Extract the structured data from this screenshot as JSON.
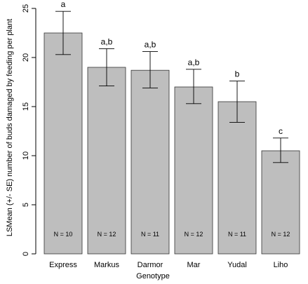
{
  "chart_data": {
    "type": "bar",
    "title": "",
    "xlabel": "Genotype",
    "ylabel": "LSMean (+/- SE) number of buds damaged by feeding per plant",
    "ylim": [
      0,
      25
    ],
    "yticks": [
      "0",
      "5",
      "10",
      "15",
      "20",
      "25"
    ],
    "categories": [
      "Express",
      "Markus",
      "Darmor",
      "Mar",
      "Yudal",
      "Liho"
    ],
    "values": [
      22.5,
      19.0,
      18.7,
      17.0,
      15.5,
      10.5
    ],
    "se_upper": [
      24.7,
      20.9,
      20.6,
      18.8,
      17.6,
      11.8
    ],
    "se_lower": [
      20.3,
      17.1,
      16.9,
      15.3,
      13.4,
      9.3
    ],
    "significance": [
      "a",
      "a,b",
      "a,b",
      "a,b",
      "b",
      "c"
    ],
    "n_labels": [
      "N = 10",
      "N = 12",
      "N = 11",
      "N = 12",
      "N = 11",
      "N = 12"
    ],
    "bar_color": "#bebebe",
    "grid": false,
    "legend": "none"
  }
}
